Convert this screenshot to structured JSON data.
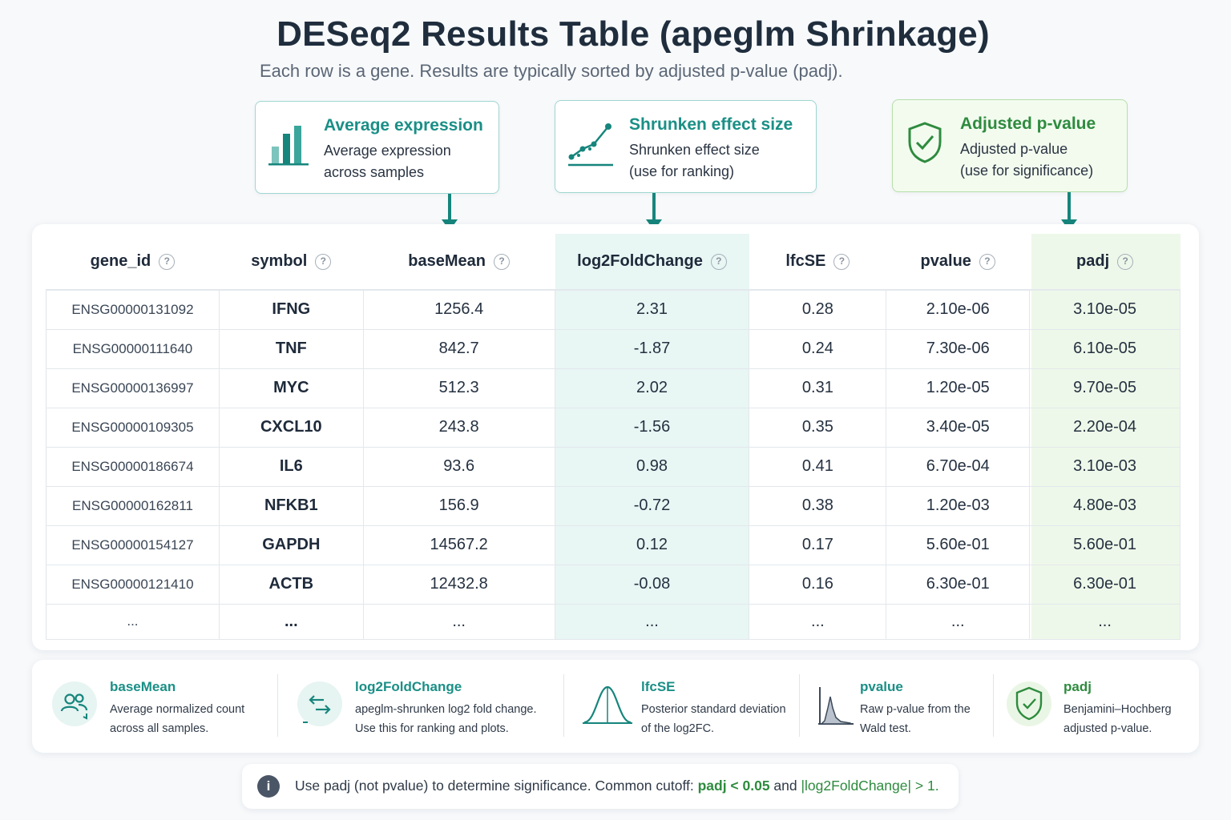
{
  "title": "DESeq2 Results Table (apeglm Shrinkage)",
  "subtitle": "Each row is a gene. Results are typically sorted by adjusted p-value (padj).",
  "callouts": [
    {
      "title": "Average expression",
      "line1": "Average expression",
      "line2": "across samples",
      "icon": "bar-chart-icon"
    },
    {
      "title": "Shrunken effect size",
      "line1": "Shrunken effect size",
      "line2": "(use for ranking)",
      "icon": "trend-line-icon"
    },
    {
      "title": "Adjusted p-value",
      "line1": "Adjusted p-value",
      "line2": "(use for significance)",
      "icon": "shield-check-icon"
    }
  ],
  "table": {
    "headers": [
      "gene_id",
      "symbol",
      "baseMean",
      "log2FoldChange",
      "lfcSE",
      "pvalue",
      "padj"
    ],
    "rows": [
      [
        "ENSG00000131092",
        "IFNG",
        "1256.4",
        "2.31",
        "0.28",
        "2.10e-06",
        "3.10e-05"
      ],
      [
        "ENSG00000111640",
        "TNF",
        "842.7",
        "-1.87",
        "0.24",
        "7.30e-06",
        "6.10e-05"
      ],
      [
        "ENSG00000136997",
        "MYC",
        "512.3",
        "2.02",
        "0.31",
        "1.20e-05",
        "9.70e-05"
      ],
      [
        "ENSG00000109305",
        "CXCL10",
        "243.8",
        "-1.56",
        "0.35",
        "3.40e-05",
        "2.20e-04"
      ],
      [
        "ENSG00000186674",
        "IL6",
        "93.6",
        "0.98",
        "0.41",
        "6.70e-04",
        "3.10e-03"
      ],
      [
        "ENSG00000162811",
        "NFKB1",
        "156.9",
        "-0.72",
        "0.38",
        "1.20e-03",
        "4.80e-03"
      ],
      [
        "ENSG00000154127",
        "GAPDH",
        "14567.2",
        "0.12",
        "0.17",
        "5.60e-01",
        "5.60e-01"
      ],
      [
        "ENSG00000121410",
        "ACTB",
        "12432.8",
        "-0.08",
        "0.16",
        "6.30e-01",
        "6.30e-01"
      ],
      [
        "...",
        "...",
        "...",
        "...",
        "...",
        "...",
        "..."
      ]
    ]
  },
  "legend": [
    {
      "name": "baseMean",
      "line1": "Average normalized count",
      "line2": "across all samples.",
      "icon": "people-icon"
    },
    {
      "name": "log2FoldChange",
      "line1": "apeglm-shrunken log2 fold change.",
      "line2": "Use this for ranking and plots.",
      "icon": "arrows-icon"
    },
    {
      "name": "lfcSE",
      "line1": "Posterior standard deviation",
      "line2": "of the log2FC.",
      "icon": "bell-curve-icon"
    },
    {
      "name": "pvalue",
      "line1": "Raw p-value from the",
      "line2": "Wald test.",
      "icon": "histogram-icon"
    },
    {
      "name": "padj",
      "line1": "Benjamini–Hochberg",
      "line2": "adjusted p-value.",
      "icon": "shield-check-icon"
    }
  ],
  "note": {
    "prefix": "Use padj (not pvalue) to determine significance. Common cutoff: ",
    "cut1": "padj < 0.05",
    "mid": " and ",
    "cut2": "|log2FoldChange| > 1",
    "suffix": ".",
    "icon": "info-icon"
  },
  "colors": {
    "teal": "#1a8f86",
    "green": "#2e8b3e",
    "teal_bg": "#e8f6f4",
    "green_bg": "#eef8ea"
  }
}
